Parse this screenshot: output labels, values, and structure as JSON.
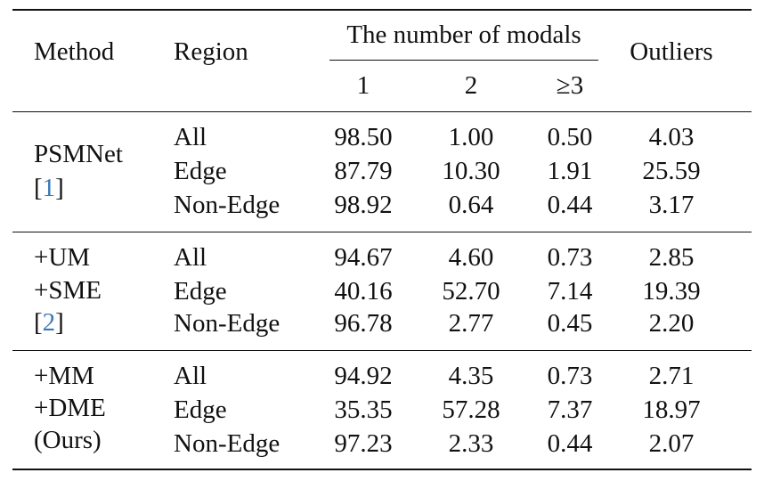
{
  "header": {
    "method": "Method",
    "region": "Region",
    "modals_group": "The number of modals",
    "modal_cols": [
      "1",
      "2",
      "≥3"
    ],
    "outliers": "Outliers"
  },
  "groups": [
    {
      "method_lines": [
        "PSMNet"
      ],
      "cite_open": "[",
      "cite": "1",
      "cite_close": "]",
      "rows": [
        {
          "region": "All",
          "m1": "98.50",
          "m2": "1.00",
          "m3": "0.50",
          "outliers": "4.03"
        },
        {
          "region": "Edge",
          "m1": "87.79",
          "m2": "10.30",
          "m3": "1.91",
          "outliers": "25.59"
        },
        {
          "region": "Non-Edge",
          "m1": "98.92",
          "m2": "0.64",
          "m3": "0.44",
          "outliers": "3.17"
        }
      ]
    },
    {
      "method_lines": [
        "+UM",
        "+SME"
      ],
      "cite_open": "[",
      "cite": "2",
      "cite_close": "]",
      "rows": [
        {
          "region": "All",
          "m1": "94.67",
          "m2": "4.60",
          "m3": "0.73",
          "outliers": "2.85"
        },
        {
          "region": "Edge",
          "m1": "40.16",
          "m2": "52.70",
          "m3": "7.14",
          "outliers": "19.39"
        },
        {
          "region": "Non-Edge",
          "m1": "96.78",
          "m2": "2.77",
          "m3": "0.45",
          "outliers": "2.20"
        }
      ]
    },
    {
      "method_lines": [
        "+MM",
        "+DME",
        "(Ours)"
      ],
      "rows": [
        {
          "region": "All",
          "m1": "94.92",
          "m2": "4.35",
          "m3": "0.73",
          "outliers": "2.71"
        },
        {
          "region": "Edge",
          "m1": "35.35",
          "m2": "57.28",
          "m3": "7.37",
          "outliers": "18.97"
        },
        {
          "region": "Non-Edge",
          "m1": "97.23",
          "m2": "2.33",
          "m3": "0.44",
          "outliers": "2.07"
        }
      ]
    }
  ]
}
